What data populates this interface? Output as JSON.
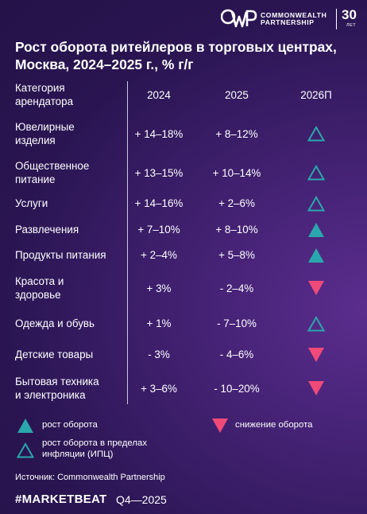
{
  "brand": {
    "logo_mark": "CWP",
    "name_line1": "COMMONWEALTH",
    "name_line2": "PARTNERSHIP",
    "years": "30",
    "years_sub": "ЛЕТ"
  },
  "chart_data": {
    "type": "table",
    "title_line1": "Рост оборота ритейлеров в торговых центрах,",
    "title_line2": "Москва, 2024–2025 г., % г/г",
    "header_category_line1": "Категория",
    "header_category_line2": "арендатора",
    "columns": [
      "2024",
      "2025",
      "2026П"
    ],
    "rows": [
      {
        "label": [
          "Ювелирные",
          "изделия"
        ],
        "v2024": "+ 14–18%",
        "v2025": "+ 8–12%",
        "forecast": "inflation"
      },
      {
        "label": [
          "Общественное",
          "питание"
        ],
        "v2024": "+ 13–15%",
        "v2025": "+ 10–14%",
        "forecast": "inflation"
      },
      {
        "label": [
          "Услуги"
        ],
        "v2024": "+ 14–16%",
        "v2025": "+ 2–6%",
        "forecast": "inflation"
      },
      {
        "label": [
          "Развлечения"
        ],
        "v2024": "+ 7–10%",
        "v2025": "+ 8–10%",
        "forecast": "growth"
      },
      {
        "label": [
          "Продукты питания"
        ],
        "v2024": "+ 2–4%",
        "v2025": "+ 5–8%",
        "forecast": "growth"
      },
      {
        "label": [
          "Красота и",
          "здоровье"
        ],
        "v2024": "+ 3%",
        "v2025": "- 2–4%",
        "forecast": "decline"
      },
      {
        "label": [
          "Одежда и обувь"
        ],
        "v2024": "+ 1%",
        "v2025": "- 7–10%",
        "forecast": "inflation"
      },
      {
        "label": [
          "Детские товары"
        ],
        "v2024": "- 3%",
        "v2025": "- 4–6%",
        "forecast": "decline"
      },
      {
        "label": [
          "Бытовая техника",
          "и электроника"
        ],
        "v2024": "+ 3–6%",
        "v2025": "- 10–20%",
        "forecast": "decline"
      }
    ],
    "legend": {
      "growth": "рост оборота",
      "decline": "снижение оборота",
      "inflation_line1": "рост оборота в пределах",
      "inflation_line2": "инфляции (ИПЦ)"
    },
    "colors": {
      "growth": "#2aa7ad",
      "inflation": "#2aa7ad",
      "decline": "#f04a78"
    }
  },
  "footer": {
    "source": "Источник: Commonwealth Partnership",
    "brand": "#MARKETBEAT",
    "period": "Q4—2025"
  }
}
